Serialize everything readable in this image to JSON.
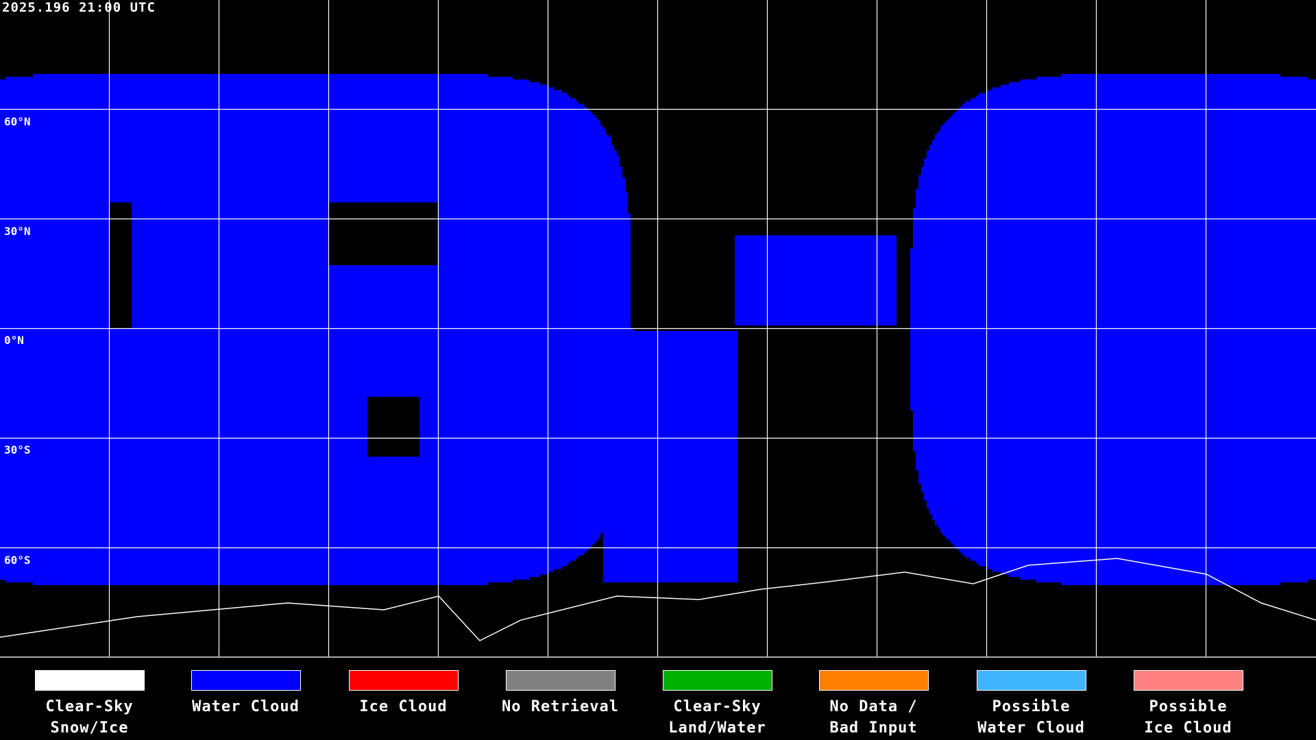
{
  "title": "2025.196 21:00 UTC",
  "lat_labels": [
    "60°N",
    "30°N",
    "0°N",
    "30°S",
    "60°S"
  ],
  "legend": [
    {
      "line1": "Clear-Sky",
      "line2": "Snow/Ice",
      "color": "#ffffff"
    },
    {
      "line1": "Water Cloud",
      "line2": "",
      "color": "#0000ff"
    },
    {
      "line1": "Ice Cloud",
      "line2": "",
      "color": "#ff0000"
    },
    {
      "line1": "No Retrieval",
      "line2": "",
      "color": "#808080"
    },
    {
      "line1": "Clear-Sky",
      "line2": "Land/Water",
      "color": "#00b000"
    },
    {
      "line1": "No Data /",
      "line2": "Bad Input",
      "color": "#ff8000"
    },
    {
      "line1": "Possible",
      "line2": "Water Cloud",
      "color": "#40b4ff"
    },
    {
      "line1": "Possible",
      "line2": "Ice Cloud",
      "color": "#ff8080"
    }
  ],
  "grid": {
    "lon_step_deg": 30,
    "lat_step_deg": 30,
    "color": "#ffffff"
  }
}
